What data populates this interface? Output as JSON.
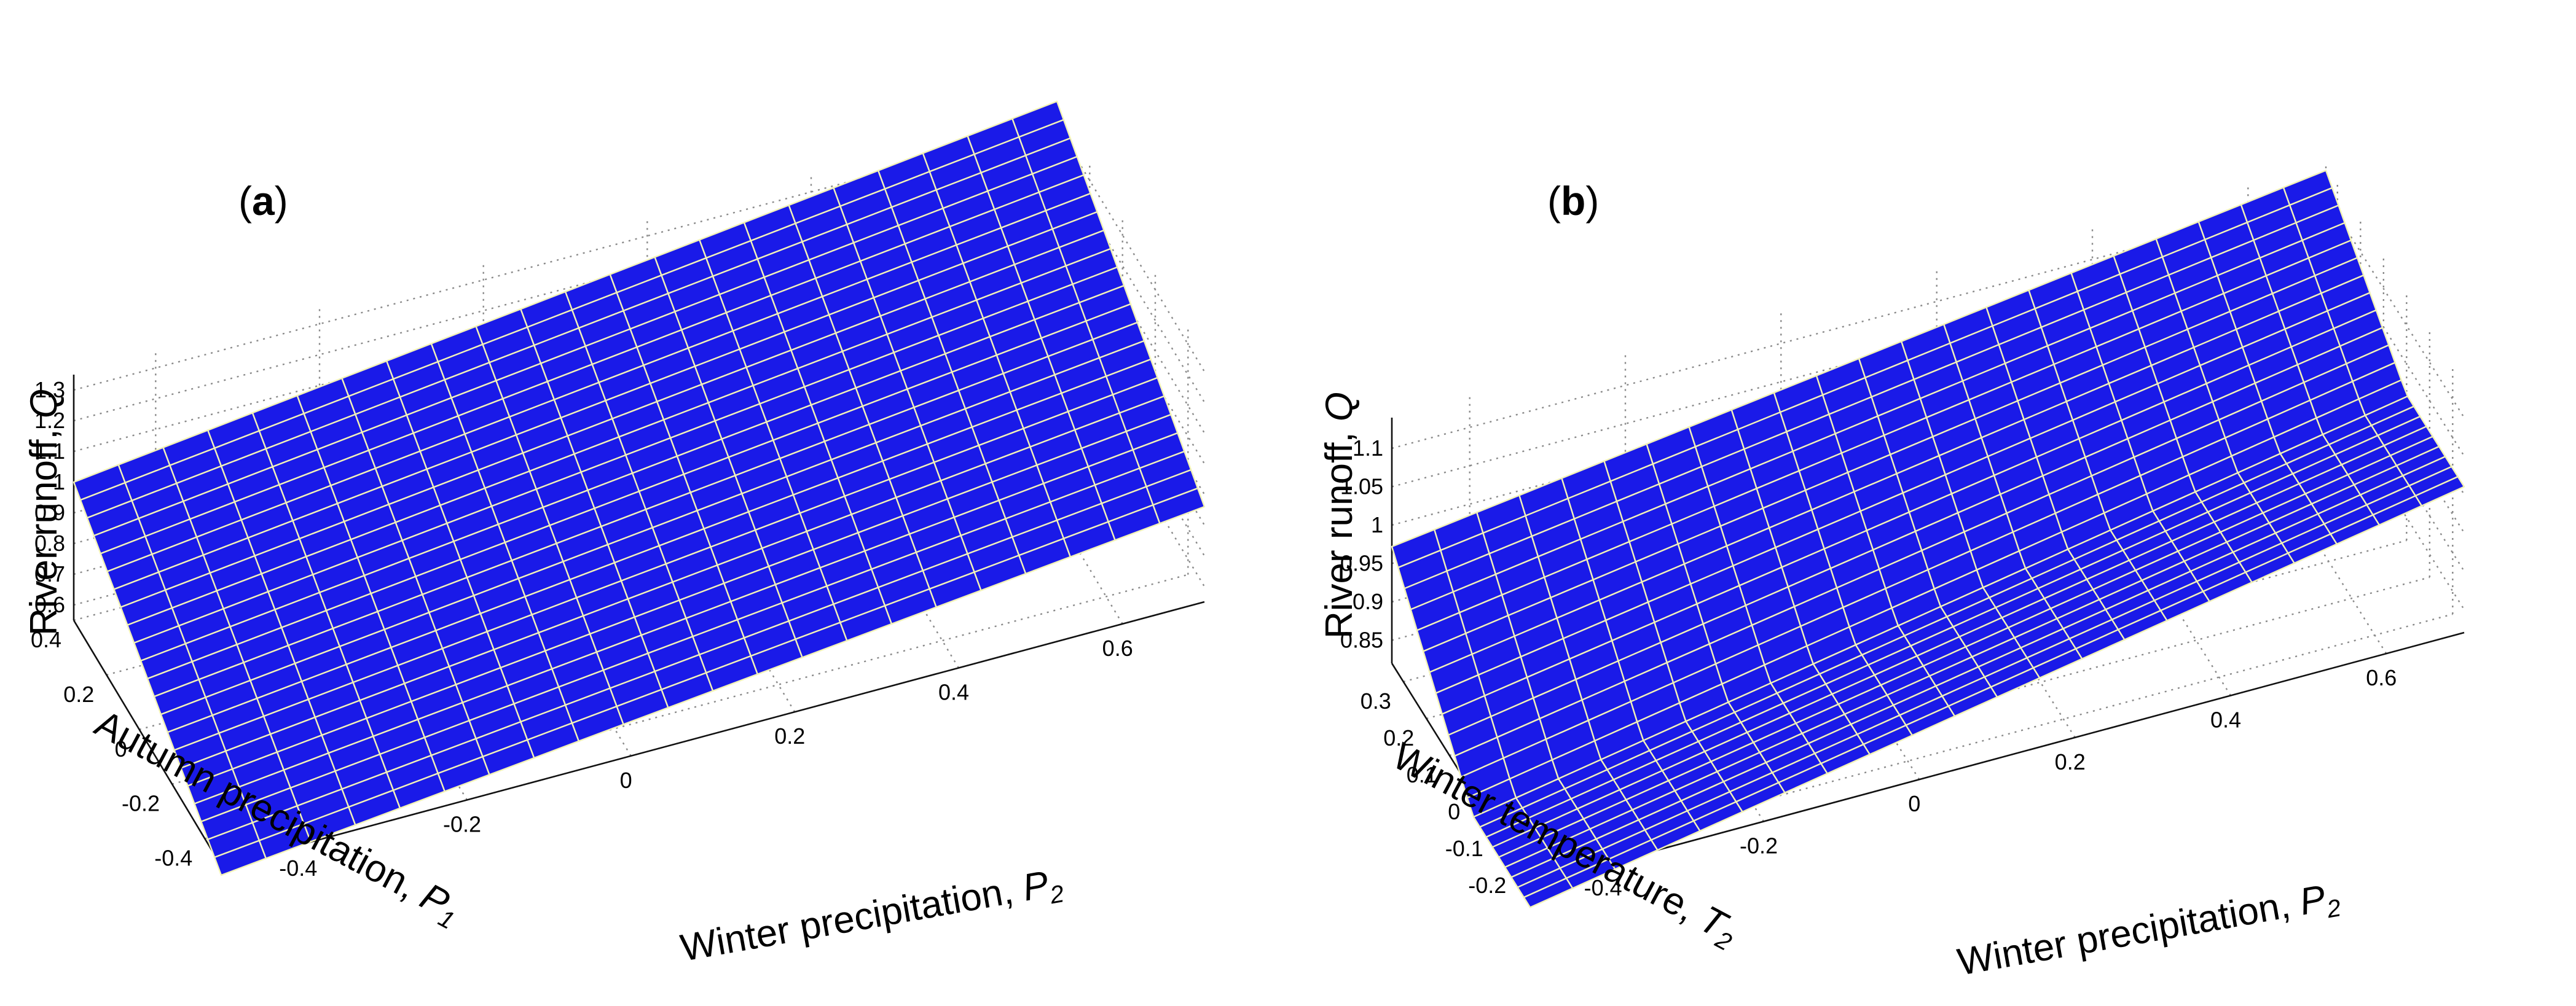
{
  "chart_data": [
    {
      "panel": "a",
      "type": "surface",
      "panel_label": "a",
      "xlabel": "Winter precipitation, ",
      "xlabel_symbol": "P",
      "xlabel_sub": "2",
      "ylabel": "Autumn precipitation, ",
      "ylabel_symbol": "P",
      "ylabel_sub": "1",
      "zlabel": "River runoff, ",
      "zlabel_symbol": "Q",
      "x_ticks": [
        "-0.4",
        "-0.2",
        "0",
        "0.2",
        "0.4",
        "0.6"
      ],
      "y_ticks": [
        "-0.4",
        "-0.2",
        "0",
        "0.2",
        "0.4"
      ],
      "z_ticks": [
        "0.6",
        "0.7",
        "0.8",
        "0.9",
        "1",
        "1.1",
        "1.2",
        "1.3"
      ],
      "x_range": [
        -0.5,
        0.7
      ],
      "y_range": [
        -0.5,
        0.4
      ],
      "z_range": [
        0.55,
        1.35
      ],
      "grid": true,
      "surface_color": "#1a1ae8",
      "mesh_color": "#f2f2b8",
      "surface_corners": {
        "x_min_y_max": 1.0,
        "x_max_y_max": 1.38,
        "x_min_y_min": 0.52,
        "x_max_y_min": 0.86
      },
      "mesh_divisions": 22
    },
    {
      "panel": "b",
      "type": "surface",
      "panel_label": "b",
      "xlabel": "Winter precipitation, ",
      "xlabel_symbol": "P",
      "xlabel_sub": "2",
      "ylabel": "Winter temperature, ",
      "ylabel_symbol": "T",
      "ylabel_sub": "2",
      "zlabel": "River runoff, ",
      "zlabel_symbol": "Q",
      "x_ticks": [
        "-0.4",
        "-0.2",
        "0",
        "0.2",
        "0.4",
        "0.6"
      ],
      "y_ticks": [
        "-0.2",
        "-0.1",
        "0",
        "0.1",
        "0.2",
        "0.3"
      ],
      "z_ticks": [
        "0.85",
        "0.9",
        "0.95",
        "1",
        "1.05",
        "1.1"
      ],
      "x_range": [
        -0.5,
        0.7
      ],
      "y_range": [
        -0.25,
        0.35
      ],
      "z_range": [
        0.82,
        1.14
      ],
      "grid": true,
      "surface_color": "#1a1ae8",
      "mesh_color": "#f2f2b8",
      "breakpoint_temperature": 0,
      "surface_corners": {
        "x_min_y_max": 0.972,
        "x_max_y_max": 1.134,
        "x_min_y_break": 0.79,
        "x_max_y_break": 1.01
      },
      "mesh_divisions": 22
    }
  ]
}
